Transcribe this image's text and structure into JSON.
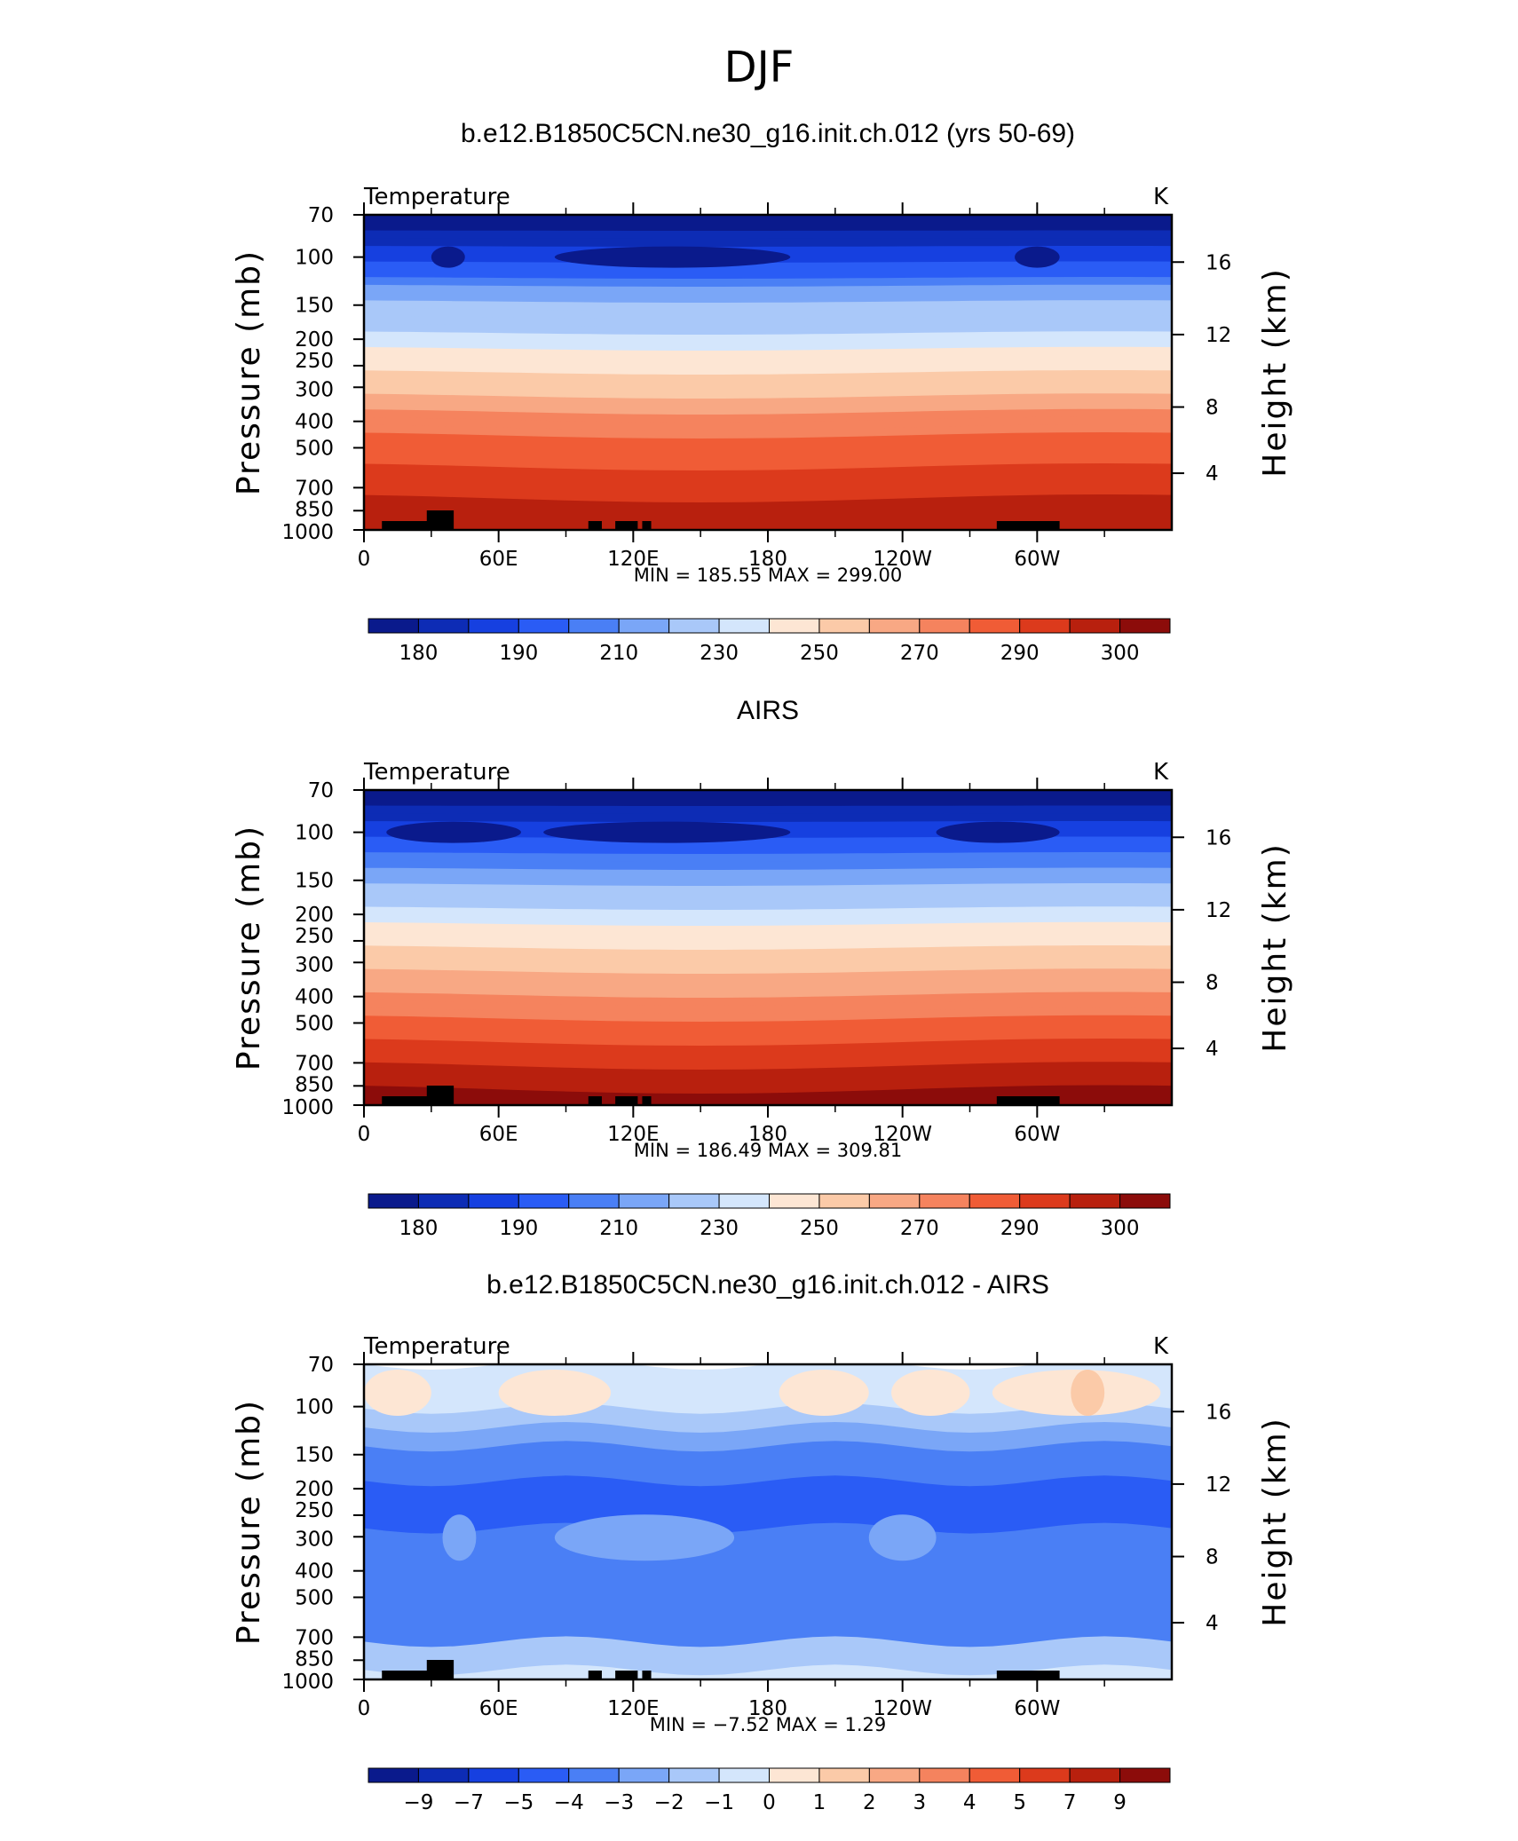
{
  "figure_title": "DJF",
  "chart_data": [
    {
      "type": "heatmap",
      "title": "b.e12.B1850C5CN.ne30_g16.init.ch.012 (yrs 50-69)",
      "left_label": "Temperature",
      "units": "K",
      "ylabel": "Pressure (mb)",
      "ylabel_right": "Height (km)",
      "x_ticks": [
        "0",
        "60E",
        "120E",
        "180",
        "120W",
        "60W"
      ],
      "y_ticks": [
        "70",
        "100",
        "150",
        "200",
        "250",
        "300",
        "400",
        "500",
        "700",
        "850",
        "1000"
      ],
      "y_ticks_right": [
        "16",
        "12",
        "8",
        "4"
      ],
      "stats": "MIN = 185.55 MAX = 299.00",
      "colorbar_labels": [
        "180",
        "190",
        "210",
        "230",
        "250",
        "270",
        "290",
        "300"
      ],
      "colorbar_colors": [
        "#0a1a8c",
        "#0d2cb5",
        "#1640e0",
        "#2a5cf5",
        "#4a7ff5",
        "#7aa6f7",
        "#a9c8f9",
        "#d4e6fc",
        "#fde6d4",
        "#fbcaa8",
        "#f8a884",
        "#f5835e",
        "#f05c36",
        "#dc3a1c",
        "#b8200e",
        "#8c0c0a"
      ],
      "profile_levels": [
        0,
        0,
        1,
        1,
        2,
        2,
        3,
        3,
        4,
        5,
        5,
        6,
        6,
        6,
        6,
        7,
        7,
        8,
        8,
        8,
        9,
        9,
        9,
        10,
        10,
        11,
        11,
        11,
        12,
        12,
        12,
        12,
        13,
        13,
        13,
        13,
        14,
        14,
        14,
        14
      ],
      "cold_patches": [
        {
          "lon_start": 30,
          "lon_end": 45,
          "level": 0
        },
        {
          "lon_start": 85,
          "lon_end": 190,
          "level": 0
        },
        {
          "lon_start": 290,
          "lon_end": 310,
          "level": 0
        }
      ]
    },
    {
      "type": "heatmap",
      "title": "AIRS",
      "left_label": "Temperature",
      "units": "K",
      "ylabel": "Pressure (mb)",
      "ylabel_right": "Height (km)",
      "x_ticks": [
        "0",
        "60E",
        "120E",
        "180",
        "120W",
        "60W"
      ],
      "y_ticks": [
        "70",
        "100",
        "150",
        "200",
        "250",
        "300",
        "400",
        "500",
        "700",
        "850",
        "1000"
      ],
      "y_ticks_right": [
        "16",
        "12",
        "8",
        "4"
      ],
      "stats": "MIN = 186.49 MAX = 309.81",
      "colorbar_labels": [
        "180",
        "190",
        "210",
        "230",
        "250",
        "270",
        "290",
        "300"
      ],
      "colorbar_colors": [
        "#0a1a8c",
        "#0d2cb5",
        "#1640e0",
        "#2a5cf5",
        "#4a7ff5",
        "#7aa6f7",
        "#a9c8f9",
        "#d4e6fc",
        "#fde6d4",
        "#fbcaa8",
        "#f8a884",
        "#f5835e",
        "#f05c36",
        "#dc3a1c",
        "#b8200e",
        "#8c0c0a"
      ],
      "profile_levels": [
        0,
        0,
        1,
        1,
        2,
        2,
        3,
        3,
        4,
        4,
        5,
        5,
        6,
        6,
        6,
        7,
        7,
        8,
        8,
        8,
        9,
        9,
        9,
        10,
        10,
        10,
        11,
        11,
        11,
        12,
        12,
        12,
        13,
        13,
        13,
        14,
        14,
        14,
        15,
        15
      ],
      "cold_patches": [
        {
          "lon_start": 10,
          "lon_end": 70,
          "level": 0
        },
        {
          "lon_start": 80,
          "lon_end": 190,
          "level": 0
        },
        {
          "lon_start": 255,
          "lon_end": 310,
          "level": 0
        }
      ]
    },
    {
      "type": "heatmap",
      "title": "b.e12.B1850C5CN.ne30_g16.init.ch.012 - AIRS",
      "left_label": "Temperature",
      "units": "K",
      "ylabel": "Pressure (mb)",
      "ylabel_right": "Height (km)",
      "x_ticks": [
        "0",
        "60E",
        "120E",
        "180",
        "120W",
        "60W"
      ],
      "y_ticks": [
        "70",
        "100",
        "150",
        "200",
        "250",
        "300",
        "400",
        "500",
        "700",
        "850",
        "1000"
      ],
      "y_ticks_right": [
        "16",
        "12",
        "8",
        "4"
      ],
      "stats": "MIN = −7.52 MAX = 1.29",
      "colorbar_labels": [
        "−9",
        "−7",
        "−5",
        "−4",
        "−3",
        "−2",
        "−1",
        "0",
        "1",
        "2",
        "3",
        "4",
        "5",
        "7",
        "9"
      ],
      "colorbar_colors": [
        "#0a1a8c",
        "#0d2cb5",
        "#1640e0",
        "#2a5cf5",
        "#4a7ff5",
        "#7aa6f7",
        "#a9c8f9",
        "#d4e6fc",
        "#fde6d4",
        "#fbcaa8",
        "#f8a884",
        "#f5835e",
        "#f05c36",
        "#dc3a1c",
        "#b8200e",
        "#8c0c0a"
      ],
      "diff_bands": [
        {
          "top": 0.0,
          "bottom": 0.14,
          "level": 7
        },
        {
          "top": 0.14,
          "bottom": 0.2,
          "level": 6
        },
        {
          "top": 0.2,
          "bottom": 0.26,
          "level": 5
        },
        {
          "top": 0.26,
          "bottom": 0.37,
          "level": 4
        },
        {
          "top": 0.37,
          "bottom": 0.52,
          "level": 3
        },
        {
          "top": 0.52,
          "bottom": 0.88,
          "level": 4
        },
        {
          "top": 0.88,
          "bottom": 0.97,
          "level": 6
        },
        {
          "top": 0.97,
          "bottom": 1.0,
          "level": 7
        }
      ],
      "warm_patches": [
        {
          "lon_start": 0,
          "lon_end": 30,
          "level": 8
        },
        {
          "lon_start": 60,
          "lon_end": 110,
          "level": 8
        },
        {
          "lon_start": 185,
          "lon_end": 225,
          "level": 8
        },
        {
          "lon_start": 235,
          "lon_end": 270,
          "level": 8
        },
        {
          "lon_start": 280,
          "lon_end": 355,
          "level": 8
        },
        {
          "lon_start": 315,
          "lon_end": 330,
          "level": 9
        }
      ],
      "mid_patches": [
        {
          "lon_start": 85,
          "lon_end": 165,
          "level": 5
        },
        {
          "lon_start": 225,
          "lon_end": 255,
          "level": 5
        },
        {
          "lon_start": 35,
          "lon_end": 50,
          "level": 5
        }
      ]
    }
  ]
}
